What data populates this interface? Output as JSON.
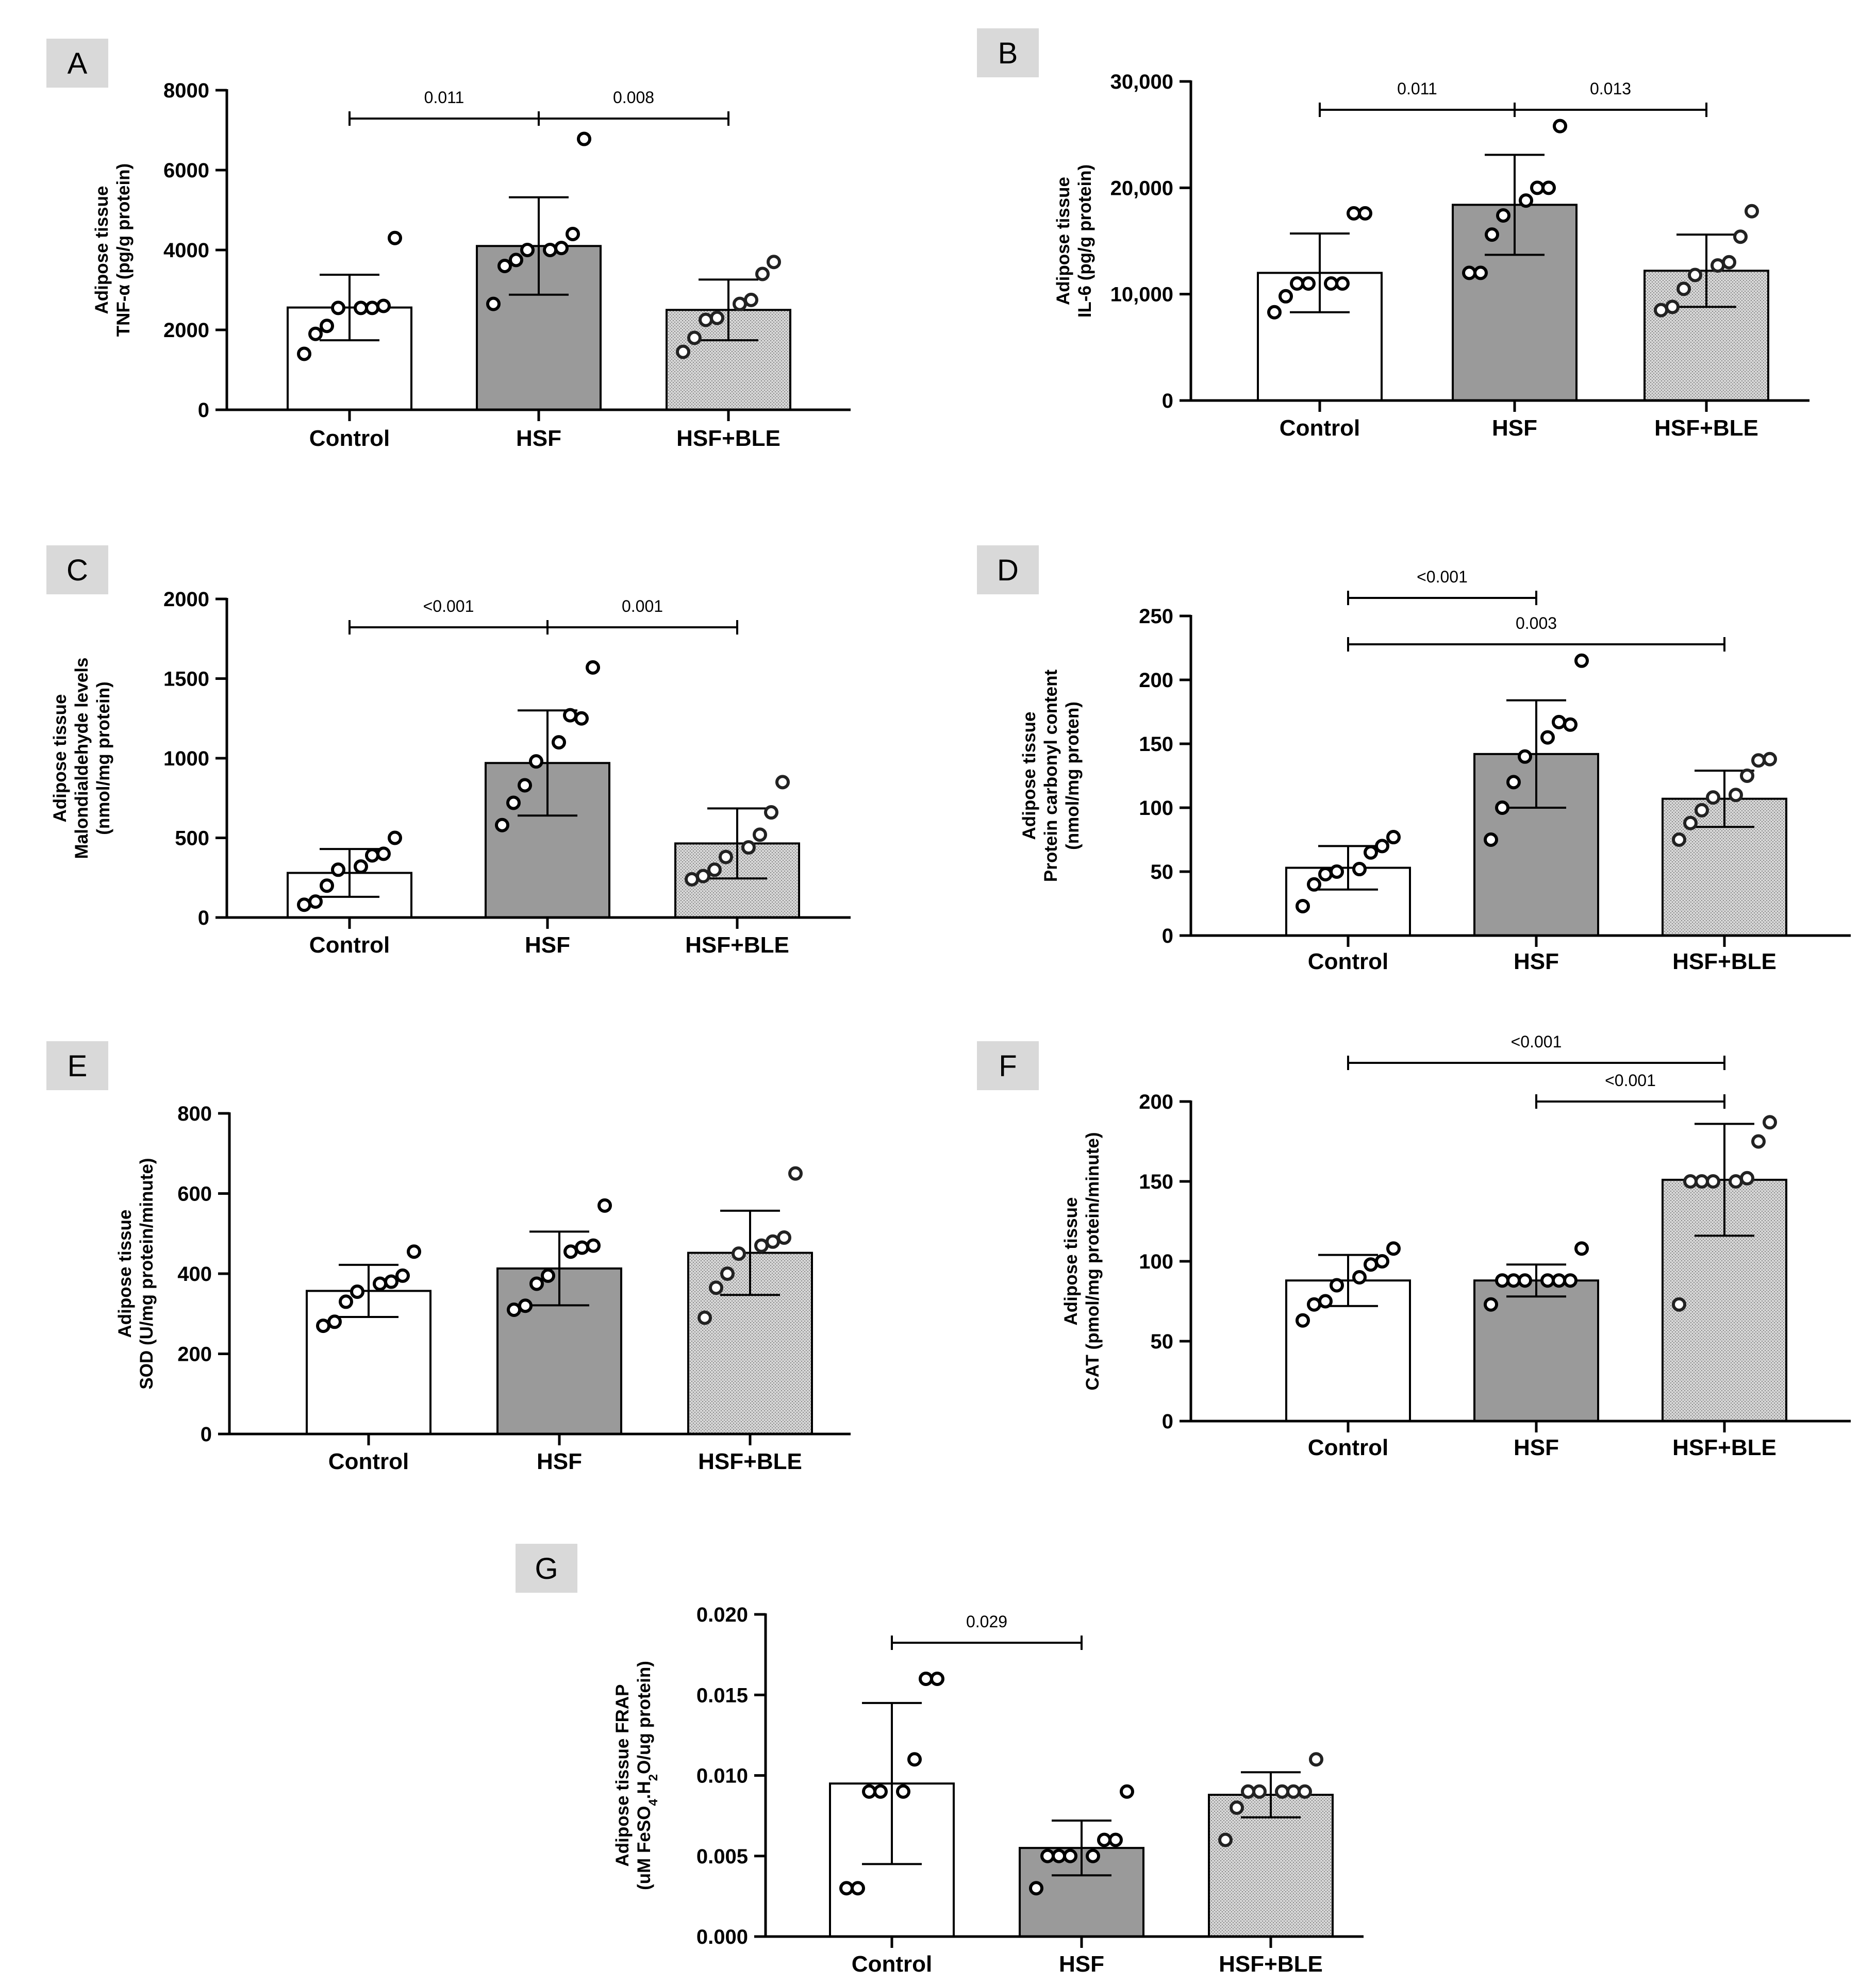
{
  "categories": [
    "Control",
    "HSF",
    "HSF+BLE"
  ],
  "colors": {
    "axis": "#000000",
    "control_fill": "#ffffff",
    "hsf_fill": "#9a9a9a",
    "ble_fill": "#d6d6d6",
    "ble_dots": "#6e6e6e",
    "panel_badge": "#d9d9d9"
  },
  "chart_data": [
    {
      "panel": "A",
      "type": "bar",
      "categories": [
        "Control",
        "HSF",
        "HSF+BLE"
      ],
      "ylabel_lines": [
        "Adipose tissue",
        "TNF-α (pg/g protein)"
      ],
      "ylim": [
        0,
        8000
      ],
      "yticks": [
        0,
        2000,
        4000,
        6000,
        8000
      ],
      "ytick_labels": [
        "0",
        "2000",
        "4000",
        "6000",
        "8000"
      ],
      "means": [
        2560,
        4100,
        2500
      ],
      "sd": [
        820,
        1220,
        760
      ],
      "points": [
        [
          1400,
          1900,
          2100,
          2550,
          2550,
          2550,
          2600,
          4300
        ],
        [
          2650,
          3600,
          3750,
          4000,
          4000,
          4050,
          4400,
          6780
        ],
        [
          1450,
          1800,
          2250,
          2300,
          2650,
          2750,
          3400,
          3700
        ]
      ],
      "comparisons": [
        {
          "from": 0,
          "to": 1,
          "label": "0.011",
          "level": 0
        },
        {
          "from": 1,
          "to": 2,
          "label": "0.008",
          "level": 0
        }
      ]
    },
    {
      "panel": "B",
      "type": "bar",
      "categories": [
        "Control",
        "HSF",
        "HSF+BLE"
      ],
      "ylabel_lines": [
        "Adipose tissue",
        "IL-6 (pg/g protein)"
      ],
      "ylim": [
        0,
        30000
      ],
      "yticks": [
        0,
        10000,
        20000,
        30000
      ],
      "ytick_labels": [
        "0",
        "10,000",
        "20,000",
        "30,000"
      ],
      "means": [
        12000,
        18400,
        12200
      ],
      "sd": [
        3700,
        4700,
        3400
      ],
      "points": [
        [
          8300,
          9800,
          11000,
          11000,
          11000,
          11000,
          17600,
          17600
        ],
        [
          12000,
          12000,
          15600,
          17400,
          18800,
          20000,
          20000,
          25800
        ],
        [
          8500,
          8800,
          10500,
          11800,
          12700,
          13000,
          15400,
          17800
        ]
      ],
      "comparisons": [
        {
          "from": 0,
          "to": 1,
          "label": "0.011",
          "level": 0
        },
        {
          "from": 1,
          "to": 2,
          "label": "0.013",
          "level": 0
        }
      ]
    },
    {
      "panel": "C",
      "type": "bar",
      "categories": [
        "Control",
        "HSF",
        "HSF+BLE"
      ],
      "ylabel_lines": [
        "Adipose tissue",
        "Malondialdehyde levels",
        "(nmol/mg protein)"
      ],
      "ylim": [
        0,
        2000
      ],
      "yticks": [
        0,
        500,
        1000,
        1500,
        2000
      ],
      "ytick_labels": [
        "0",
        "500",
        "1000",
        "1500",
        "2000"
      ],
      "means": [
        280,
        970,
        465
      ],
      "sd": [
        150,
        330,
        220
      ],
      "points": [
        [
          80,
          100,
          200,
          300,
          320,
          390,
          400,
          500
        ],
        [
          580,
          720,
          830,
          980,
          1100,
          1270,
          1250,
          1570
        ],
        [
          240,
          260,
          300,
          380,
          440,
          520,
          660,
          850
        ]
      ],
      "comparisons": [
        {
          "from": 0,
          "to": 1,
          "label": "<0.001",
          "level": 0
        },
        {
          "from": 1,
          "to": 2,
          "label": "0.001",
          "level": 0
        }
      ]
    },
    {
      "panel": "D",
      "type": "bar",
      "categories": [
        "Control",
        "HSF",
        "HSF+BLE"
      ],
      "ylabel_lines": [
        "Adipose tissue",
        "Protein carbonyl content",
        "(nmol/mg proten)"
      ],
      "ylim": [
        0,
        250
      ],
      "yticks": [
        0,
        50,
        100,
        150,
        200,
        250
      ],
      "ytick_labels": [
        "0",
        "50",
        "100",
        "150",
        "200",
        "250"
      ],
      "means": [
        53,
        142,
        107
      ],
      "sd": [
        17,
        42,
        22
      ],
      "points": [
        [
          23,
          40,
          48,
          50,
          52,
          65,
          70,
          77
        ],
        [
          75,
          100,
          120,
          140,
          155,
          167,
          165,
          215
        ],
        [
          75,
          88,
          98,
          108,
          110,
          125,
          137,
          138
        ]
      ],
      "comparisons": [
        {
          "from": 0,
          "to": 1,
          "label": "<0.001",
          "level": 0
        },
        {
          "from": 0,
          "to": 2,
          "label": "0.003",
          "level": 1
        }
      ]
    },
    {
      "panel": "E",
      "type": "bar",
      "categories": [
        "Control",
        "HSF",
        "HSF+BLE"
      ],
      "ylabel_lines": [
        "Adipose tissue",
        "SOD (U/mg protein/minute)"
      ],
      "ylim": [
        0,
        800
      ],
      "yticks": [
        0,
        200,
        400,
        600,
        800
      ],
      "ytick_labels": [
        "0",
        "200",
        "400",
        "600",
        "800"
      ],
      "means": [
        357,
        413,
        452
      ],
      "sd": [
        65,
        92,
        105
      ],
      "points": [
        [
          270,
          280,
          330,
          355,
          375,
          380,
          395,
          455
        ],
        [
          310,
          320,
          375,
          395,
          455,
          465,
          470,
          570
        ],
        [
          290,
          365,
          400,
          450,
          470,
          480,
          490,
          650
        ]
      ],
      "comparisons": []
    },
    {
      "panel": "F",
      "type": "bar",
      "categories": [
        "Control",
        "HSF",
        "HSF+BLE"
      ],
      "ylabel_lines": [
        "Adipose tissue",
        "CAT (pmol/mg protein/minute)"
      ],
      "ylim": [
        0,
        200
      ],
      "yticks": [
        0,
        50,
        100,
        150,
        200
      ],
      "ytick_labels": [
        "0",
        "50",
        "100",
        "150",
        "200"
      ],
      "means": [
        88,
        88,
        151
      ],
      "sd": [
        16,
        10,
        35
      ],
      "points": [
        [
          63,
          73,
          75,
          85,
          90,
          98,
          100,
          108
        ],
        [
          73,
          88,
          88,
          88,
          88,
          88,
          88,
          108
        ],
        [
          73,
          150,
          150,
          150,
          150,
          152,
          175,
          187
        ]
      ],
      "comparisons": [
        {
          "from": 0,
          "to": 2,
          "label": "<0.001",
          "level": 1
        },
        {
          "from": 1,
          "to": 2,
          "label": "<0.001",
          "level": 0
        }
      ]
    },
    {
      "panel": "G",
      "type": "bar",
      "categories": [
        "Control",
        "HSF",
        "HSF+BLE"
      ],
      "ylabel_lines": [
        "Adipose tissue FRAP",
        "(uM FeSO4.H2O/ug protein)"
      ],
      "ylim": [
        0,
        0.02
      ],
      "yticks": [
        0,
        0.005,
        0.01,
        0.015,
        0.02
      ],
      "ytick_labels": [
        "0.000",
        "0.005",
        "0.010",
        "0.015",
        "0.020"
      ],
      "means": [
        0.0095,
        0.0055,
        0.0088
      ],
      "sd": [
        0.005,
        0.0017,
        0.0014
      ],
      "points": [
        [
          0.003,
          0.003,
          0.009,
          0.009,
          0.009,
          0.011,
          0.016,
          0.016
        ],
        [
          0.003,
          0.005,
          0.005,
          0.005,
          0.005,
          0.006,
          0.006,
          0.009
        ],
        [
          0.006,
          0.008,
          0.009,
          0.009,
          0.009,
          0.009,
          0.009,
          0.011
        ]
      ],
      "comparisons": [
        {
          "from": 0,
          "to": 1,
          "label": "0.029",
          "level": 0
        }
      ]
    }
  ]
}
